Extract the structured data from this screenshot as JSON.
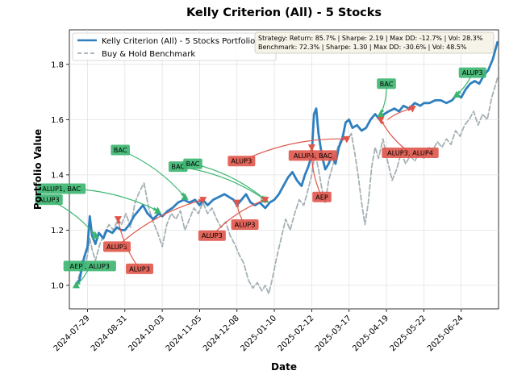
{
  "chart_data": {
    "type": "line",
    "title": "Kelly Criterion (All) - 5 Stocks",
    "xlabel": "Date",
    "ylabel": "Portfolio Value",
    "ylim": [
      0.915,
      1.925
    ],
    "x_range": [
      "2024-07-13",
      "2025-07-27"
    ],
    "x_ticks": [
      "2024-07-29",
      "2024-08-31",
      "2024-10-03",
      "2024-11-05",
      "2024-12-08",
      "2025-01-10",
      "2025-02-12",
      "2025-03-17",
      "2025-04-19",
      "2025-05-22",
      "2025-06-24"
    ],
    "y_ticks": [
      1.0,
      1.2,
      1.4,
      1.6,
      1.8
    ],
    "y_tick_labels": [
      "1.0",
      "1.2",
      "1.4",
      "1.6",
      "1.8"
    ],
    "grid": true,
    "legend_position": "upper-left",
    "stats_text": [
      "Strategy: Return: 85.7% | Sharpe: 2.19 | Max DD: -12.7% | Vol: 28.3%",
      "Benchmark: 72.3% | Sharpe: 1.30 | Max DD: -30.6% | Vol: 48.5%"
    ],
    "series": [
      {
        "name": "Kelly Criterion (All) - 5 Stocks Portfolio",
        "color": "#2e7fbf",
        "style": "solid",
        "points": [
          [
            "2024-07-19",
            1.0
          ],
          [
            "2024-07-22",
            1.02
          ],
          [
            "2024-07-24",
            1.06
          ],
          [
            "2024-07-26",
            1.1
          ],
          [
            "2024-07-29",
            1.14
          ],
          [
            "2024-07-31",
            1.25
          ],
          [
            "2024-08-02",
            1.18
          ],
          [
            "2024-08-05",
            1.15
          ],
          [
            "2024-08-08",
            1.19
          ],
          [
            "2024-08-12",
            1.17
          ],
          [
            "2024-08-15",
            1.2
          ],
          [
            "2024-08-20",
            1.19
          ],
          [
            "2024-08-24",
            1.21
          ],
          [
            "2024-08-28",
            1.2
          ],
          [
            "2024-08-31",
            1.2
          ],
          [
            "2024-09-04",
            1.22
          ],
          [
            "2024-09-08",
            1.25
          ],
          [
            "2024-09-12",
            1.27
          ],
          [
            "2024-09-16",
            1.29
          ],
          [
            "2024-09-20",
            1.26
          ],
          [
            "2024-09-25",
            1.24
          ],
          [
            "2024-09-30",
            1.26
          ],
          [
            "2024-10-03",
            1.25
          ],
          [
            "2024-10-08",
            1.27
          ],
          [
            "2024-10-12",
            1.28
          ],
          [
            "2024-10-17",
            1.3
          ],
          [
            "2024-10-22",
            1.31
          ],
          [
            "2024-10-27",
            1.3
          ],
          [
            "2024-11-01",
            1.31
          ],
          [
            "2024-11-05",
            1.29
          ],
          [
            "2024-11-08",
            1.31
          ],
          [
            "2024-11-12",
            1.29
          ],
          [
            "2024-11-17",
            1.31
          ],
          [
            "2024-11-22",
            1.32
          ],
          [
            "2024-11-27",
            1.33
          ],
          [
            "2024-12-01",
            1.32
          ],
          [
            "2024-12-05",
            1.31
          ],
          [
            "2024-12-08",
            1.29
          ],
          [
            "2024-12-12",
            1.31
          ],
          [
            "2024-12-16",
            1.33
          ],
          [
            "2024-12-20",
            1.3
          ],
          [
            "2024-12-24",
            1.29
          ],
          [
            "2024-12-28",
            1.3
          ],
          [
            "2025-01-02",
            1.28
          ],
          [
            "2025-01-06",
            1.3
          ],
          [
            "2025-01-10",
            1.31
          ],
          [
            "2025-01-14",
            1.33
          ],
          [
            "2025-01-18",
            1.36
          ],
          [
            "2025-01-22",
            1.39
          ],
          [
            "2025-01-26",
            1.41
          ],
          [
            "2025-01-30",
            1.38
          ],
          [
            "2025-02-03",
            1.36
          ],
          [
            "2025-02-06",
            1.4
          ],
          [
            "2025-02-09",
            1.43
          ],
          [
            "2025-02-12",
            1.47
          ],
          [
            "2025-02-14",
            1.62
          ],
          [
            "2025-02-16",
            1.64
          ],
          [
            "2025-02-18",
            1.55
          ],
          [
            "2025-02-21",
            1.47
          ],
          [
            "2025-02-24",
            1.42
          ],
          [
            "2025-02-27",
            1.44
          ],
          [
            "2025-03-02",
            1.47
          ],
          [
            "2025-03-05",
            1.44
          ],
          [
            "2025-03-08",
            1.5
          ],
          [
            "2025-03-11",
            1.53
          ],
          [
            "2025-03-14",
            1.59
          ],
          [
            "2025-03-17",
            1.6
          ],
          [
            "2025-03-20",
            1.57
          ],
          [
            "2025-03-24",
            1.58
          ],
          [
            "2025-03-28",
            1.56
          ],
          [
            "2025-04-01",
            1.57
          ],
          [
            "2025-04-05",
            1.6
          ],
          [
            "2025-04-09",
            1.62
          ],
          [
            "2025-04-13",
            1.6
          ],
          [
            "2025-04-17",
            1.62
          ],
          [
            "2025-04-21",
            1.63
          ],
          [
            "2025-04-26",
            1.64
          ],
          [
            "2025-04-30",
            1.63
          ],
          [
            "2025-05-04",
            1.65
          ],
          [
            "2025-05-09",
            1.64
          ],
          [
            "2025-05-14",
            1.66
          ],
          [
            "2025-05-19",
            1.65
          ],
          [
            "2025-05-22",
            1.66
          ],
          [
            "2025-05-27",
            1.66
          ],
          [
            "2025-06-01",
            1.67
          ],
          [
            "2025-06-06",
            1.67
          ],
          [
            "2025-06-11",
            1.66
          ],
          [
            "2025-06-16",
            1.67
          ],
          [
            "2025-06-20",
            1.69
          ],
          [
            "2025-06-24",
            1.68
          ],
          [
            "2025-06-28",
            1.71
          ],
          [
            "2025-07-02",
            1.73
          ],
          [
            "2025-07-06",
            1.74
          ],
          [
            "2025-07-10",
            1.73
          ],
          [
            "2025-07-14",
            1.76
          ],
          [
            "2025-07-18",
            1.78
          ],
          [
            "2025-07-22",
            1.82
          ],
          [
            "2025-07-26",
            1.88
          ]
        ]
      },
      {
        "name": "Buy & Hold Benchmark",
        "color": "#a5b1b5",
        "style": "dashed",
        "points": [
          [
            "2024-07-19",
            1.0
          ],
          [
            "2024-07-22",
            1.04
          ],
          [
            "2024-07-24",
            1.09
          ],
          [
            "2024-07-26",
            1.06
          ],
          [
            "2024-07-29",
            1.11
          ],
          [
            "2024-07-31",
            1.17
          ],
          [
            "2024-08-02",
            1.13
          ],
          [
            "2024-08-05",
            1.09
          ],
          [
            "2024-08-09",
            1.15
          ],
          [
            "2024-08-13",
            1.19
          ],
          [
            "2024-08-17",
            1.22
          ],
          [
            "2024-08-21",
            1.2
          ],
          [
            "2024-08-25",
            1.24
          ],
          [
            "2024-08-28",
            1.22
          ],
          [
            "2024-09-01",
            1.26
          ],
          [
            "2024-09-05",
            1.21
          ],
          [
            "2024-09-09",
            1.3
          ],
          [
            "2024-09-13",
            1.34
          ],
          [
            "2024-09-17",
            1.37
          ],
          [
            "2024-09-21",
            1.28
          ],
          [
            "2024-09-25",
            1.23
          ],
          [
            "2024-09-29",
            1.19
          ],
          [
            "2024-10-03",
            1.14
          ],
          [
            "2024-10-07",
            1.22
          ],
          [
            "2024-10-11",
            1.26
          ],
          [
            "2024-10-15",
            1.24
          ],
          [
            "2024-10-19",
            1.27
          ],
          [
            "2024-10-23",
            1.2
          ],
          [
            "2024-10-27",
            1.24
          ],
          [
            "2024-10-31",
            1.28
          ],
          [
            "2024-11-04",
            1.26
          ],
          [
            "2024-11-08",
            1.3
          ],
          [
            "2024-11-12",
            1.26
          ],
          [
            "2024-11-16",
            1.28
          ],
          [
            "2024-11-20",
            1.24
          ],
          [
            "2024-11-24",
            1.21
          ],
          [
            "2024-11-28",
            1.23
          ],
          [
            "2024-12-02",
            1.18
          ],
          [
            "2024-12-06",
            1.15
          ],
          [
            "2024-12-10",
            1.11
          ],
          [
            "2024-12-14",
            1.08
          ],
          [
            "2024-12-18",
            1.02
          ],
          [
            "2024-12-22",
            0.99
          ],
          [
            "2024-12-26",
            1.01
          ],
          [
            "2024-12-30",
            0.98
          ],
          [
            "2025-01-02",
            1.0
          ],
          [
            "2025-01-05",
            0.97
          ],
          [
            "2025-01-08",
            1.02
          ],
          [
            "2025-01-12",
            1.1
          ],
          [
            "2025-01-16",
            1.17
          ],
          [
            "2025-01-20",
            1.24
          ],
          [
            "2025-01-24",
            1.2
          ],
          [
            "2025-01-28",
            1.26
          ],
          [
            "2025-02-01",
            1.31
          ],
          [
            "2025-02-05",
            1.29
          ],
          [
            "2025-02-09",
            1.35
          ],
          [
            "2025-02-12",
            1.4
          ],
          [
            "2025-02-15",
            1.48
          ],
          [
            "2025-02-18",
            1.42
          ],
          [
            "2025-02-21",
            1.35
          ],
          [
            "2025-02-24",
            1.3
          ],
          [
            "2025-02-27",
            1.38
          ],
          [
            "2025-03-03",
            1.44
          ],
          [
            "2025-03-07",
            1.5
          ],
          [
            "2025-03-11",
            1.54
          ],
          [
            "2025-03-15",
            1.52
          ],
          [
            "2025-03-19",
            1.55
          ],
          [
            "2025-03-22",
            1.48
          ],
          [
            "2025-03-25",
            1.4
          ],
          [
            "2025-03-28",
            1.3
          ],
          [
            "2025-03-31",
            1.22
          ],
          [
            "2025-04-03",
            1.3
          ],
          [
            "2025-04-06",
            1.43
          ],
          [
            "2025-04-09",
            1.5
          ],
          [
            "2025-04-12",
            1.46
          ],
          [
            "2025-04-16",
            1.53
          ],
          [
            "2025-04-20",
            1.45
          ],
          [
            "2025-04-24",
            1.38
          ],
          [
            "2025-04-28",
            1.42
          ],
          [
            "2025-05-02",
            1.48
          ],
          [
            "2025-05-06",
            1.44
          ],
          [
            "2025-05-10",
            1.47
          ],
          [
            "2025-05-14",
            1.45
          ],
          [
            "2025-05-18",
            1.48
          ],
          [
            "2025-05-22",
            1.46
          ],
          [
            "2025-05-26",
            1.5
          ],
          [
            "2025-05-30",
            1.49
          ],
          [
            "2025-06-03",
            1.52
          ],
          [
            "2025-06-07",
            1.5
          ],
          [
            "2025-06-11",
            1.53
          ],
          [
            "2025-06-15",
            1.51
          ],
          [
            "2025-06-19",
            1.56
          ],
          [
            "2025-06-23",
            1.54
          ],
          [
            "2025-06-27",
            1.58
          ],
          [
            "2025-07-01",
            1.6
          ],
          [
            "2025-07-05",
            1.63
          ],
          [
            "2025-07-09",
            1.58
          ],
          [
            "2025-07-13",
            1.62
          ],
          [
            "2025-07-17",
            1.6
          ],
          [
            "2025-07-21",
            1.68
          ],
          [
            "2025-07-26",
            1.75
          ]
        ]
      }
    ],
    "buy_markers": [
      [
        "2024-07-19",
        1.0
      ],
      [
        "2024-08-05",
        1.18
      ],
      [
        "2024-09-29",
        1.27
      ],
      [
        "2024-10-23",
        1.32
      ],
      [
        "2025-01-02",
        1.31
      ],
      [
        "2025-04-14",
        1.62
      ],
      [
        "2025-06-20",
        1.69
      ]
    ],
    "sell_markers": [
      [
        "2024-08-25",
        1.24
      ],
      [
        "2024-11-08",
        1.31
      ],
      [
        "2024-12-08",
        1.3
      ],
      [
        "2025-01-02",
        1.31
      ],
      [
        "2025-02-12",
        1.5
      ],
      [
        "2025-03-15",
        1.53
      ],
      [
        "2025-04-14",
        1.6
      ],
      [
        "2025-05-12",
        1.64
      ]
    ],
    "annotations": [
      {
        "text": "AEP , ALUP3",
        "kind": "buy",
        "box_at": [
          "2024-07-31",
          1.07
        ],
        "points_to": [
          "2024-07-19",
          1.0
        ]
      },
      {
        "text": "ALUP3",
        "kind": "buy",
        "box_at": [
          "2024-06-25",
          1.31
        ],
        "points_to": [
          "2024-08-05",
          1.18
        ]
      },
      {
        "text": "ALUP1, BAC",
        "kind": "buy",
        "box_at": [
          "2024-07-06",
          1.35
        ],
        "points_to": [
          "2024-09-29",
          1.27
        ]
      },
      {
        "text": "BAC",
        "kind": "buy",
        "box_at": [
          "2024-08-27",
          1.49
        ],
        "points_to": [
          "2024-10-23",
          1.32
        ]
      },
      {
        "text": "BAC",
        "kind": "buy",
        "box_at": [
          "2024-10-17",
          1.43
        ],
        "points_to": [
          "2025-01-02",
          1.31
        ]
      },
      {
        "text": "BAC",
        "kind": "buy",
        "box_at": [
          "2024-10-30",
          1.44
        ],
        "points_to": [
          "2025-01-02",
          1.31
        ]
      },
      {
        "text": "BAC",
        "kind": "buy",
        "box_at": [
          "2025-04-19",
          1.73
        ],
        "points_to": [
          "2025-04-14",
          1.62
        ]
      },
      {
        "text": "ALUP3",
        "kind": "buy",
        "box_at": [
          "2025-07-04",
          1.77
        ],
        "points_to": [
          "2025-06-20",
          1.69
        ]
      },
      {
        "text": "ALUP3",
        "kind": "sell",
        "box_at": [
          "2024-08-24",
          1.14
        ],
        "points_to": [
          "2024-11-08",
          1.31
        ]
      },
      {
        "text": "ALUP3",
        "kind": "sell",
        "box_at": [
          "2024-09-13",
          1.06
        ],
        "points_to": [
          "2024-08-25",
          1.24
        ]
      },
      {
        "text": "ALUP3",
        "kind": "sell",
        "box_at": [
          "2024-11-16",
          1.18
        ],
        "points_to": [
          "2025-01-02",
          1.31
        ]
      },
      {
        "text": "ALUP3",
        "kind": "sell",
        "box_at": [
          "2024-12-15",
          1.22
        ],
        "points_to": [
          "2024-12-08",
          1.3
        ]
      },
      {
        "text": "ALUP3",
        "kind": "sell",
        "box_at": [
          "2024-12-12",
          1.45
        ],
        "points_to": [
          "2025-03-15",
          1.53
        ]
      },
      {
        "text": "ALUP4, BAC",
        "kind": "sell",
        "box_at": [
          "2025-02-13",
          1.47
        ],
        "points_to": [
          "2025-02-12",
          1.5
        ]
      },
      {
        "text": "AEP",
        "kind": "sell",
        "box_at": [
          "2025-02-21",
          1.32
        ],
        "points_to": [
          "2025-02-12",
          1.5
        ]
      },
      {
        "text": "ALUP3, ALUP4",
        "kind": "sell",
        "box_at": [
          "2025-05-10",
          1.48
        ],
        "points_to": [
          "2025-04-14",
          1.6
        ]
      },
      {
        "text": "",
        "kind": "sell",
        "box_at": [
          "2025-04-20",
          1.6
        ],
        "points_to": [
          "2025-05-12",
          1.64
        ]
      }
    ]
  }
}
